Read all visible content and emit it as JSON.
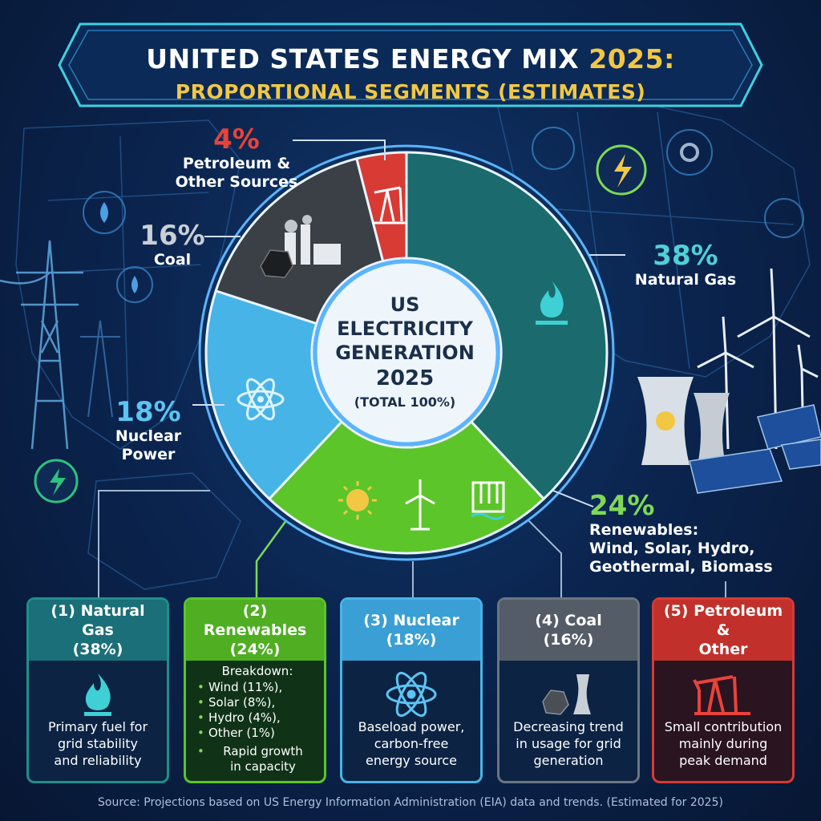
{
  "title": {
    "line1_main": "UNITED STATES ENERGY MIX ",
    "line1_accent": "2025:",
    "line2": "PROPORTIONAL SEGMENTS (ESTIMATES)"
  },
  "center": {
    "line1": "US\nELECTRICITY\nGENERATION",
    "line2": "2025",
    "line3": "(TOTAL 100%)"
  },
  "segment_labels": {
    "natural_gas": {
      "pct": "38%",
      "name": "Natural Gas"
    },
    "renewables": {
      "pct": "24%",
      "name": "Renewables:\nWind, Solar, Hydro,\nGeothermal, Biomass"
    },
    "nuclear": {
      "pct": "18%",
      "name": "Nuclear\nPower"
    },
    "coal": {
      "pct": "16%",
      "name": "Coal"
    },
    "petroleum": {
      "pct": "4%",
      "name": "Petroleum &\nOther Sources"
    }
  },
  "cards": [
    {
      "head": "(1) Natural Gas\n(38%)",
      "desc": "Primary fuel for\ngrid stability\nand reliability",
      "icon": "flame-icon",
      "color": "#1f8f8a"
    },
    {
      "head": "(2) Renewables\n(24%)",
      "breakdown_title": "Breakdown:",
      "breakdown": [
        "Wind (11%),",
        "Solar (8%),",
        "Hydro (4%),",
        "Other (1%)"
      ],
      "note": "Rapid growth\nin capacity",
      "color": "#5cc52a"
    },
    {
      "head": "(3) Nuclear\n(18%)",
      "desc": "Baseload power,\ncarbon-free\nenergy source",
      "icon": "atom-icon",
      "color": "#47b4e8"
    },
    {
      "head": "(4) Coal\n(16%)",
      "desc": "Decreasing trend\nin usage for grid\ngeneration",
      "icon": "coal-plant-icon",
      "color": "#6b7681"
    },
    {
      "head": "(5) Petroleum &\nOther",
      "desc": "Small contribution\nmainly during\npeak demand",
      "icon": "oil-pump-icon",
      "color": "#d83a34"
    }
  ],
  "source": "Source: Projections based on US Energy Information Administration (EIA) data and trends. (Estimated for 2025)",
  "chart_data": {
    "type": "pie",
    "title": "UNITED STATES ENERGY MIX 2025: PROPORTIONAL SEGMENTS (ESTIMATES)",
    "categories": [
      "Natural Gas",
      "Renewables",
      "Nuclear Power",
      "Coal",
      "Petroleum & Other Sources"
    ],
    "values": [
      38,
      24,
      18,
      16,
      4
    ],
    "colors": [
      "#1b6b6e",
      "#5cc52a",
      "#47b4e8",
      "#3a4046",
      "#d83a34"
    ],
    "renewables_breakdown": {
      "Wind": 11,
      "Solar": 8,
      "Hydro": 4,
      "Other": 1
    },
    "legend": "none"
  }
}
